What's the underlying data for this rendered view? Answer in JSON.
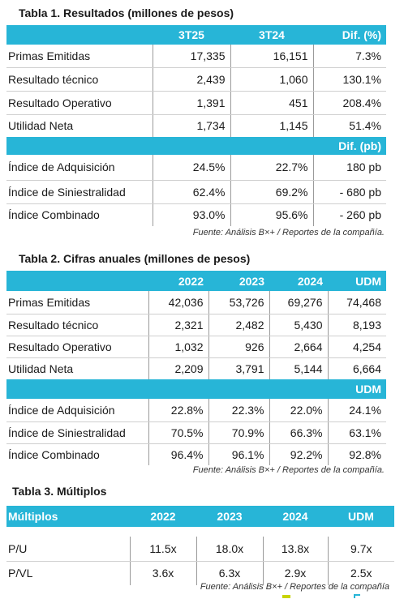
{
  "t1": {
    "title": "Tabla 1. Resultados (millones de pesos)",
    "headers": [
      "",
      "3T25",
      "3T24",
      "Dif. (%)"
    ],
    "rows": [
      [
        "Primas Emitidas",
        "17,335",
        "16,151",
        "7.3%"
      ],
      [
        "Resultado técnico",
        "2,439",
        "1,060",
        "130.1%"
      ],
      [
        "Resultado Operativo",
        "1,391",
        "451",
        "208.4%"
      ],
      [
        "Utilidad Neta",
        "1,734",
        "1,145",
        "51.4%"
      ]
    ],
    "subheader": "Dif. (pb)",
    "rows2": [
      [
        "Índice de Adquisición",
        "24.5%",
        "22.7%",
        "180 pb"
      ],
      [
        "Índice de Siniestralidad",
        "62.4%",
        "69.2%",
        "- 680 pb"
      ],
      [
        "Índice Combinado",
        "93.0%",
        "95.6%",
        "- 260 pb"
      ]
    ],
    "source": "Fuente: Análisis B×+ / Reportes de la compañía."
  },
  "t2": {
    "title": "Tabla 2. Cifras anuales (millones de pesos)",
    "headers": [
      "",
      "2022",
      "2023",
      "2024",
      "UDM"
    ],
    "rows": [
      [
        "Primas Emitidas",
        "42,036",
        "53,726",
        "69,276",
        "74,468"
      ],
      [
        "Resultado técnico",
        "2,321",
        "2,482",
        "5,430",
        "8,193"
      ],
      [
        "Resultado Operativo",
        "1,032",
        "926",
        "2,664",
        "4,254"
      ],
      [
        "Utilidad Neta",
        "2,209",
        "3,791",
        "5,144",
        "6,664"
      ]
    ],
    "subheader": "UDM",
    "rows2": [
      [
        "Índice de Adquisición",
        "22.8%",
        "22.3%",
        "22.0%",
        "24.1%"
      ],
      [
        "Índice de Siniestralidad",
        "70.5%",
        "70.9%",
        "66.3%",
        "63.1%"
      ],
      [
        "Índice Combinado",
        "96.4%",
        "96.1%",
        "92.2%",
        "92.8%"
      ]
    ],
    "source": "Fuente: Análisis B×+ / Reportes de la compañía."
  },
  "t3": {
    "title": "Tabla 3. Múltiplos",
    "headers": [
      "Múltiplos",
      "2022",
      "2023",
      "2024",
      "UDM"
    ],
    "rows": [
      [
        "P/U",
        "11.5x",
        "18.0x",
        "13.8x",
        "9.7x"
      ],
      [
        "P/VL",
        "3.6x",
        "6.3x",
        "2.9x",
        "2.5x"
      ]
    ],
    "source": "Fuente: Análisis B×+ / Reportes de la compañía"
  },
  "colors": {
    "header": "#27b5d7",
    "accent": "#c8d400"
  }
}
